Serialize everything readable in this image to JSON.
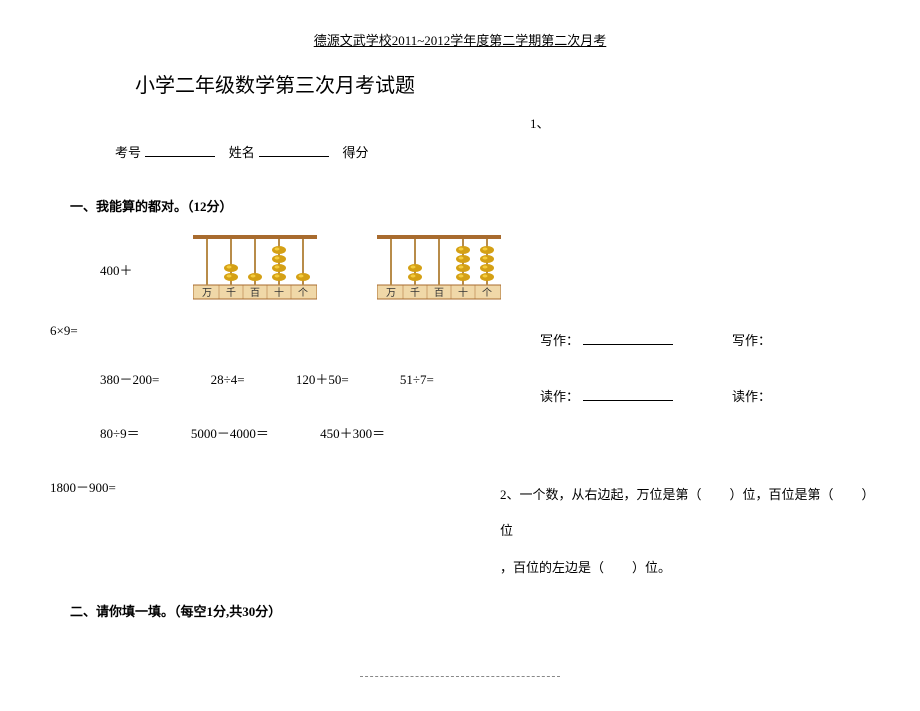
{
  "header": "德源文武学校2011~2012学年度第二学期第二次月考",
  "title": "小学二年级数学第三次月考试题",
  "marker1": "1、",
  "idLabel": "考号",
  "nameLabel": "姓名",
  "scoreLabel": "得分",
  "section1": "一、我能算的都对。（12分）",
  "abacusPrefix": "400＋",
  "abacus1": {
    "frameColor": "#a86b2e",
    "bgColor": "#f0d8a8",
    "rodColor": "#b88c4a",
    "beadColor": "#d4a015",
    "beadHighlight": "#f5cc3d",
    "labels": [
      "万",
      "千",
      "百",
      "十",
      "个"
    ],
    "beads": [
      0,
      2,
      1,
      4,
      1
    ]
  },
  "abacus2": {
    "frameColor": "#a86b2e",
    "bgColor": "#f0d8a8",
    "rodColor": "#b88c4a",
    "beadColor": "#d4a015",
    "beadHighlight": "#f5cc3d",
    "labels": [
      "万",
      "千",
      "百",
      "十",
      "个"
    ],
    "beads": [
      0,
      2,
      0,
      4,
      4
    ]
  },
  "writeLabel": "写作：",
  "readLabel": "读作：",
  "p_6x9": "6×9=",
  "row2": [
    "380－200=",
    "28÷4=",
    "120＋50=",
    "51÷7="
  ],
  "row3": [
    "80÷9＝",
    "5000－4000＝",
    "450＋300＝"
  ],
  "p_1800": "1800－900=",
  "q2a": "2、一个数，从右边起，万位是第（",
  "q2b": "）位，百位是第（",
  "q2c": "）位",
  "q2d": "，百位的左边是（",
  "q2e": "）位。",
  "section2": "二、请你填一填。（每空1分,共30分）"
}
